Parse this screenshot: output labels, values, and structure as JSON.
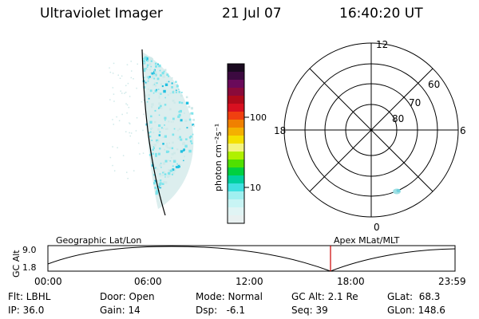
{
  "header": {
    "title": "Ultraviolet Imager",
    "date": "21 Jul 07",
    "time": "16:40:20 UT"
  },
  "colorbar": {
    "unit_label": "photon cm⁻²s⁻¹",
    "tick_labels": [
      "100",
      "10"
    ],
    "colors": [
      "#1a0a20",
      "#3c0a40",
      "#6a0a5a",
      "#8a0a3a",
      "#b00a1a",
      "#d81020",
      "#f04010",
      "#f08000",
      "#f4b000",
      "#f4e000",
      "#f4f480",
      "#b0f000",
      "#50e000",
      "#00d040",
      "#00d0a0",
      "#40e0e0",
      "#a0f0f0",
      "#c8f4f4",
      "#e0f4f4",
      "#e8f0f0"
    ],
    "data_colors": {
      "aurora_primary": "#7fe4ec",
      "aurora_bright": "#22c0e0",
      "aurora_faint": "#cfe9e9"
    }
  },
  "polar_plot": {
    "mlt_labels": [
      "12",
      "18",
      "6",
      "0"
    ],
    "lat_labels": [
      "60",
      "70",
      "80"
    ]
  },
  "altitude_plot": {
    "left_titles": [
      "Geographic Lat/Lon",
      "Apex MLat/MLT"
    ],
    "axis_label": "GC Alt",
    "y_ticks": [
      "9.0",
      "1.8"
    ],
    "x_ticks": [
      "00:00",
      "06:00",
      "12:00",
      "18:00",
      "23:59"
    ],
    "marker_color": "#cc0000"
  },
  "info": {
    "filter_label": "Flt: LBHL",
    "door_label": "Door: Open",
    "mode_label": "Mode: Normal",
    "gc_alt_label": "GC Alt: 2.1 Re",
    "glat_label": "GLat:  68.3",
    "ip_label": "IP: 36.0",
    "gain_label": "Gain: 14",
    "dsp_label": "Dsp:   -6.1",
    "seq_label": "Seq: 39",
    "glon_label": "GLon: 148.6"
  }
}
